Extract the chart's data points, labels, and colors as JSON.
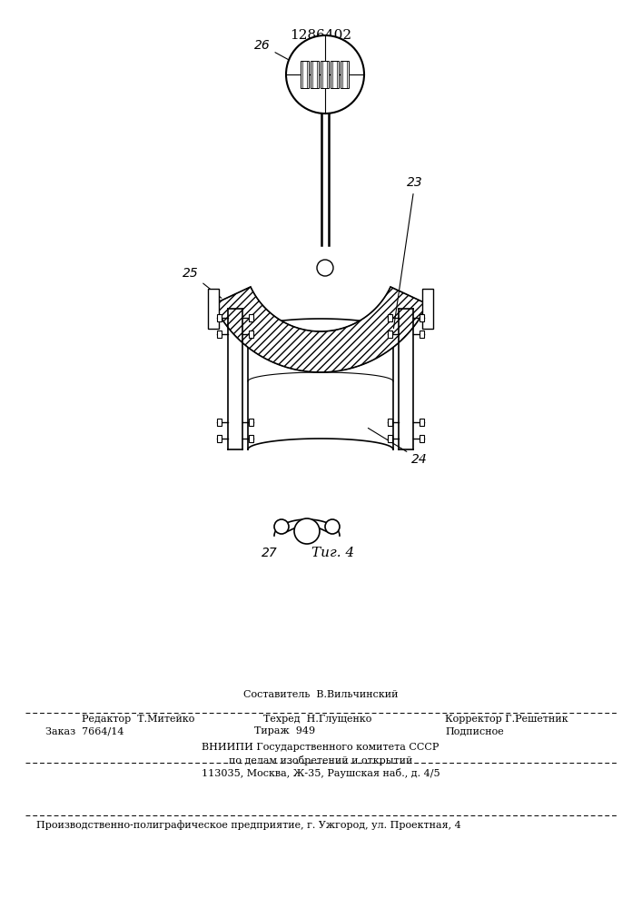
{
  "title": "1286402",
  "bg_color": "#ffffff",
  "line_color": "#000000",
  "fig_label": "Τиг. 4",
  "label_23": "23",
  "label_24": "24",
  "label_25": "25",
  "label_26": "26",
  "label_27": "27",
  "footer_sestavitel": "Составитель  В.Вильчинский",
  "footer_redaktor": "Редактор  Т.Митейко",
  "footer_tehred": "Техред  Н.Глущенко",
  "footer_korrektor": "Корректор Г.Решетник",
  "footer_zakaz": "Заказ  7664/14",
  "footer_tirazh": "Тираж  949",
  "footer_podpisnoe": "Подписное",
  "footer_vniip1": "ВНИИПИ Государственного комитета СССР",
  "footer_vniip2": "по делам изобретений и открытий",
  "footer_vniip3": "113035, Москва, Ж-35, Раушская наб., д. 4/5",
  "footer_pred": "Производственно-полиграфическое предприятие, г. Ужгород, ул. Проектная, 4"
}
